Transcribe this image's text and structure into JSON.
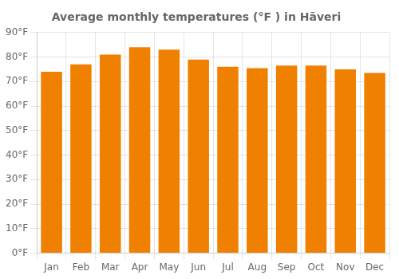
{
  "chart_data": {
    "type": "bar",
    "title": "Average monthly temperatures (°F ) in Hāveri",
    "categories": [
      "Jan",
      "Feb",
      "Mar",
      "Apr",
      "May",
      "Jun",
      "Jul",
      "Aug",
      "Sep",
      "Oct",
      "Nov",
      "Dec"
    ],
    "values": [
      74,
      77,
      81,
      84,
      83,
      79,
      76,
      75.5,
      76.5,
      76.5,
      75,
      73.5
    ],
    "color": "#F08000",
    "ylim": [
      0,
      90
    ],
    "yticks": [
      {
        "value": 0,
        "label": "0°F"
      },
      {
        "value": 10,
        "label": "10°F"
      },
      {
        "value": 20,
        "label": "20°F"
      },
      {
        "value": 30,
        "label": "30°F"
      },
      {
        "value": 40,
        "label": "40°F"
      },
      {
        "value": 50,
        "label": "50°F"
      },
      {
        "value": 60,
        "label": "60°F"
      },
      {
        "value": 70,
        "label": "70°F"
      },
      {
        "value": 80,
        "label": "80°F"
      },
      {
        "value": 90,
        "label": "90°F"
      }
    ],
    "grid": true
  }
}
